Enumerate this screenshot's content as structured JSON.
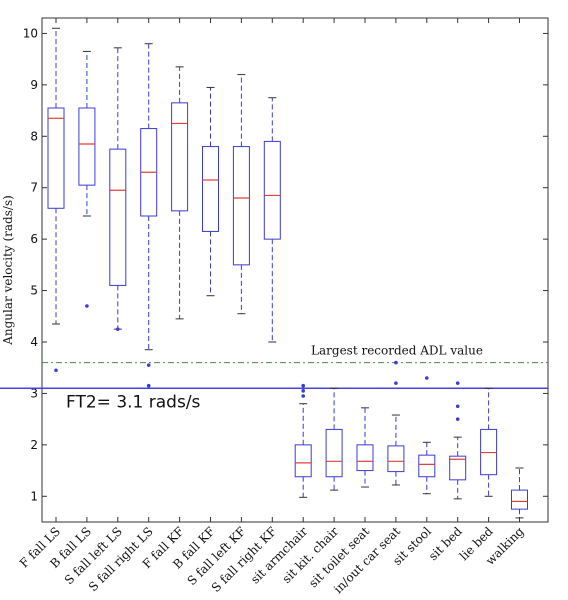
{
  "chart_data": {
    "type": "box",
    "title": "",
    "xlabel": "",
    "ylabel": "Angular velocity (rads/s)",
    "ylim": [
      0.5,
      10.3
    ],
    "yticks": [
      1,
      2,
      3,
      4,
      5,
      6,
      7,
      8,
      9,
      10
    ],
    "grid": false,
    "colors": {
      "box": "#3b3bd6",
      "median": "#e0403a",
      "ft2_line": "#4444dd",
      "adl_line": "#4a8a4a",
      "frame": "#333333"
    },
    "annotations": {
      "adl_label": "Largest recorded ADL value",
      "adl_value": 3.6,
      "ft2_label": "FT2= 3.1 rads/s",
      "ft2_value": 3.1
    },
    "boxes": [
      {
        "category": "F fall LS",
        "whisker_low": 4.35,
        "q1": 6.6,
        "median": 8.35,
        "q3": 8.55,
        "whisker_high": 10.1,
        "outliers": [
          3.45
        ]
      },
      {
        "category": "B fall LS",
        "whisker_low": 6.45,
        "q1": 7.05,
        "median": 7.85,
        "q3": 8.55,
        "whisker_high": 9.65,
        "outliers": [
          4.7
        ]
      },
      {
        "category": "S fall left LS",
        "whisker_low": 4.25,
        "q1": 5.1,
        "median": 6.95,
        "q3": 7.75,
        "whisker_high": 9.72,
        "outliers": [
          4.25
        ]
      },
      {
        "category": "S fall right LS",
        "whisker_low": 3.85,
        "q1": 6.45,
        "median": 7.3,
        "q3": 8.15,
        "whisker_high": 9.8,
        "outliers": [
          3.55,
          3.15
        ]
      },
      {
        "category": "F fall KF",
        "whisker_low": 4.45,
        "q1": 6.55,
        "median": 8.25,
        "q3": 8.65,
        "whisker_high": 9.35,
        "outliers": []
      },
      {
        "category": "B fall KF",
        "whisker_low": 4.9,
        "q1": 6.15,
        "median": 7.15,
        "q3": 7.8,
        "whisker_high": 8.95,
        "outliers": []
      },
      {
        "category": "S fall left KF",
        "whisker_low": 4.55,
        "q1": 5.5,
        "median": 6.8,
        "q3": 7.8,
        "whisker_high": 9.2,
        "outliers": []
      },
      {
        "category": "S fall right KF",
        "whisker_low": 4.0,
        "q1": 6.0,
        "median": 6.85,
        "q3": 7.9,
        "whisker_high": 8.75,
        "outliers": []
      },
      {
        "category": "sit armchair",
        "whisker_low": 0.98,
        "q1": 1.38,
        "median": 1.65,
        "q3": 2.0,
        "whisker_high": 2.8,
        "outliers": [
          3.15,
          3.05,
          2.95
        ]
      },
      {
        "category": "sit kit. chair",
        "whisker_low": 1.12,
        "q1": 1.38,
        "median": 1.68,
        "q3": 2.3,
        "whisker_high": 3.1,
        "outliers": []
      },
      {
        "category": "sit toilet seat",
        "whisker_low": 1.18,
        "q1": 1.5,
        "median": 1.68,
        "q3": 2.0,
        "whisker_high": 2.72,
        "outliers": []
      },
      {
        "category": "in/out car seat",
        "whisker_low": 1.22,
        "q1": 1.48,
        "median": 1.68,
        "q3": 1.98,
        "whisker_high": 2.58,
        "outliers": [
          3.6,
          3.2
        ]
      },
      {
        "category": "sit stool",
        "whisker_low": 1.05,
        "q1": 1.38,
        "median": 1.62,
        "q3": 1.8,
        "whisker_high": 2.05,
        "outliers": [
          3.3
        ]
      },
      {
        "category": "sit bed",
        "whisker_low": 0.95,
        "q1": 1.32,
        "median": 1.72,
        "q3": 1.78,
        "whisker_high": 2.15,
        "outliers": [
          3.2,
          2.75,
          2.5
        ]
      },
      {
        "category": "lie bed",
        "whisker_low": 1.0,
        "q1": 1.42,
        "median": 1.85,
        "q3": 2.3,
        "whisker_high": 3.1,
        "outliers": []
      },
      {
        "category": "walking",
        "whisker_low": 0.58,
        "q1": 0.75,
        "median": 0.9,
        "q3": 1.12,
        "whisker_high": 1.55,
        "outliers": []
      }
    ]
  }
}
